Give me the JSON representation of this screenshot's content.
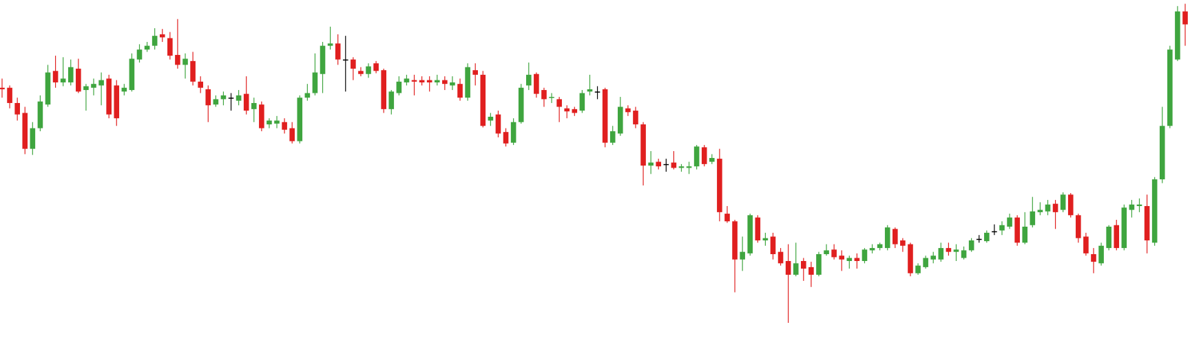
{
  "chart_data": {
    "type": "candlestick",
    "up_color": "#3fa53f",
    "down_color": "#e01f1f",
    "doji_color": "#000000",
    "open": [
      345,
      345,
      325,
      312,
      265,
      292,
      323,
      367,
      352,
      352,
      370,
      342,
      345,
      348,
      357,
      348,
      340,
      342,
      382,
      395,
      400,
      415,
      410,
      388,
      375,
      380,
      353,
      343,
      323,
      330,
      332,
      328,
      337,
      317,
      323,
      297,
      298,
      300,
      292,
      275,
      332,
      338,
      363,
      400,
      403,
      382,
      382,
      367,
      363,
      377,
      368,
      317,
      338,
      352,
      355,
      355,
      355,
      352,
      355,
      348,
      350,
      332,
      368,
      362,
      302,
      310,
      287,
      273,
      300,
      348,
      363,
      342,
      332,
      330,
      318,
      317,
      315,
      340,
      340,
      343,
      273,
      285,
      318,
      315,
      297,
      243,
      248,
      245,
      247,
      240,
      240,
      242,
      267,
      248,
      252,
      180,
      170,
      120,
      128,
      175,
      145,
      150,
      130,
      118,
      100,
      118,
      110,
      100,
      127,
      133,
      125,
      118,
      122,
      118,
      132,
      135,
      135,
      160,
      145,
      140,
      102,
      110,
      120,
      120,
      135,
      130,
      122,
      132,
      147,
      144,
      157,
      158,
      163,
      175,
      142,
      165,
      182,
      183,
      193,
      185,
      205,
      178,
      150,
      127,
      115,
      135,
      165,
      135,
      185,
      190,
      190,
      142,
      225,
      295,
      382,
      445
    ],
    "high": [
      357,
      348,
      332,
      320,
      300,
      335,
      375,
      387,
      385,
      382,
      383,
      350,
      357,
      365,
      362,
      355,
      350,
      390,
      402,
      405,
      423,
      422,
      418,
      435,
      390,
      392,
      360,
      348,
      335,
      340,
      338,
      342,
      360,
      332,
      327,
      305,
      308,
      305,
      300,
      335,
      350,
      390,
      405,
      425,
      415,
      413,
      385,
      372,
      377,
      380,
      370,
      342,
      360,
      362,
      362,
      360,
      360,
      362,
      360,
      360,
      357,
      377,
      377,
      367,
      312,
      315,
      292,
      305,
      350,
      378,
      365,
      345,
      338,
      333,
      322,
      320,
      342,
      362,
      347,
      345,
      295,
      333,
      322,
      320,
      300,
      262,
      252,
      252,
      262,
      245,
      248,
      270,
      270,
      258,
      265,
      190,
      172,
      150,
      180,
      178,
      155,
      155,
      135,
      140,
      142,
      122,
      117,
      130,
      140,
      140,
      132,
      125,
      128,
      135,
      140,
      142,
      165,
      162,
      148,
      142,
      115,
      125,
      130,
      142,
      142,
      140,
      137,
      148,
      152,
      158,
      166,
      170,
      180,
      178,
      182,
      202,
      195,
      198,
      198,
      208,
      207,
      180,
      155,
      135,
      142,
      165,
      172,
      192,
      198,
      200,
      205,
      228,
      320,
      400,
      452,
      455
    ],
    "low": [
      332,
      318,
      302,
      258,
      257,
      288,
      320,
      345,
      347,
      348,
      338,
      315,
      335,
      322,
      305,
      295,
      335,
      340,
      378,
      392,
      395,
      405,
      382,
      370,
      357,
      348,
      338,
      300,
      320,
      322,
      315,
      322,
      310,
      300,
      288,
      292,
      292,
      285,
      272,
      272,
      328,
      335,
      338,
      395,
      375,
      340,
      355,
      360,
      358,
      364,
      312,
      310,
      335,
      348,
      335,
      348,
      340,
      348,
      342,
      342,
      328,
      328,
      348,
      293,
      295,
      280,
      268,
      270,
      298,
      342,
      332,
      320,
      325,
      300,
      305,
      308,
      312,
      335,
      330,
      267,
      270,
      282,
      308,
      292,
      217,
      232,
      238,
      235,
      238,
      235,
      232,
      238,
      242,
      245,
      170,
      168,
      77,
      105,
      125,
      142,
      138,
      120,
      112,
      37,
      98,
      92,
      84,
      98,
      125,
      120,
      105,
      108,
      108,
      115,
      128,
      132,
      132,
      135,
      130,
      98,
      100,
      108,
      115,
      117,
      125,
      118,
      120,
      130,
      142,
      142,
      152,
      152,
      160,
      138,
      140,
      162,
      178,
      178,
      160,
      182,
      175,
      142,
      125,
      102,
      112,
      132,
      132,
      132,
      175,
      182,
      128,
      138,
      220,
      292,
      380,
      400
    ],
    "close": [
      343,
      325,
      310,
      265,
      292,
      327,
      365,
      352,
      357,
      372,
      340,
      347,
      350,
      355,
      310,
      305,
      345,
      383,
      395,
      400,
      413,
      411,
      387,
      375,
      383,
      353,
      345,
      322,
      330,
      335,
      332,
      335,
      315,
      325,
      292,
      302,
      302,
      290,
      275,
      332,
      338,
      365,
      400,
      403,
      382,
      382,
      370,
      363,
      373,
      367,
      317,
      340,
      353,
      357,
      353,
      352,
      352,
      355,
      350,
      352,
      332,
      372,
      362,
      295,
      307,
      285,
      272,
      300,
      345,
      362,
      337,
      330,
      333,
      320,
      314,
      312,
      338,
      343,
      340,
      273,
      288,
      320,
      313,
      297,
      243,
      247,
      242,
      245,
      240,
      242,
      242,
      268,
      245,
      253,
      182,
      170,
      120,
      130,
      178,
      145,
      148,
      127,
      115,
      100,
      115,
      108,
      100,
      127,
      132,
      123,
      120,
      122,
      118,
      133,
      135,
      140,
      162,
      140,
      138,
      102,
      112,
      122,
      125,
      135,
      130,
      133,
      132,
      145,
      147,
      155,
      157,
      165,
      175,
      142,
      163,
      183,
      185,
      192,
      182,
      205,
      178,
      148,
      128,
      117,
      138,
      163,
      135,
      188,
      192,
      192,
      145,
      225,
      295,
      395,
      445,
      428
    ]
  }
}
